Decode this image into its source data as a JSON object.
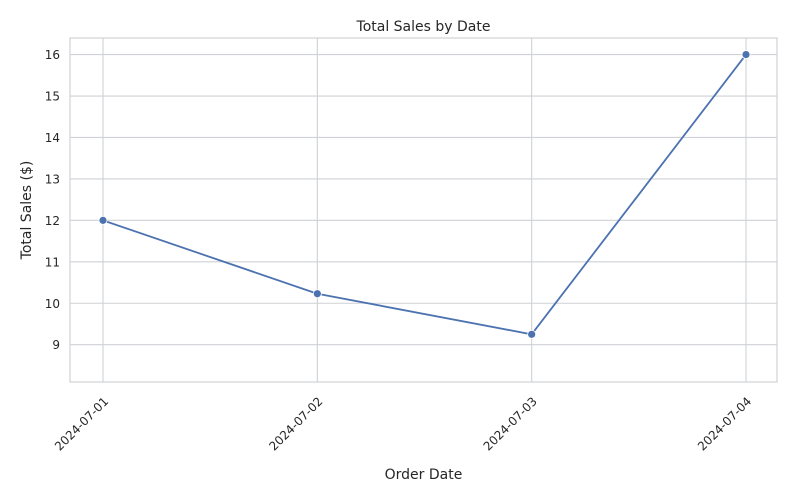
{
  "chart_data": {
    "type": "line",
    "title": "Total Sales by Date",
    "xlabel": "Order Date",
    "ylabel": "Total Sales ($)",
    "x": [
      "2024-07-01",
      "2024-07-02",
      "2024-07-03",
      "2024-07-04"
    ],
    "series": [
      {
        "values": [
          12.0,
          10.23,
          9.25,
          16.0
        ]
      }
    ],
    "yticks": [
      9,
      10,
      11,
      12,
      13,
      14,
      15,
      16
    ],
    "ylim": [
      8.1,
      16.4
    ],
    "grid": true,
    "line_color": "#4c72b0",
    "grid_color": "#cfd1d6",
    "x_tick_rotation": "45deg"
  }
}
